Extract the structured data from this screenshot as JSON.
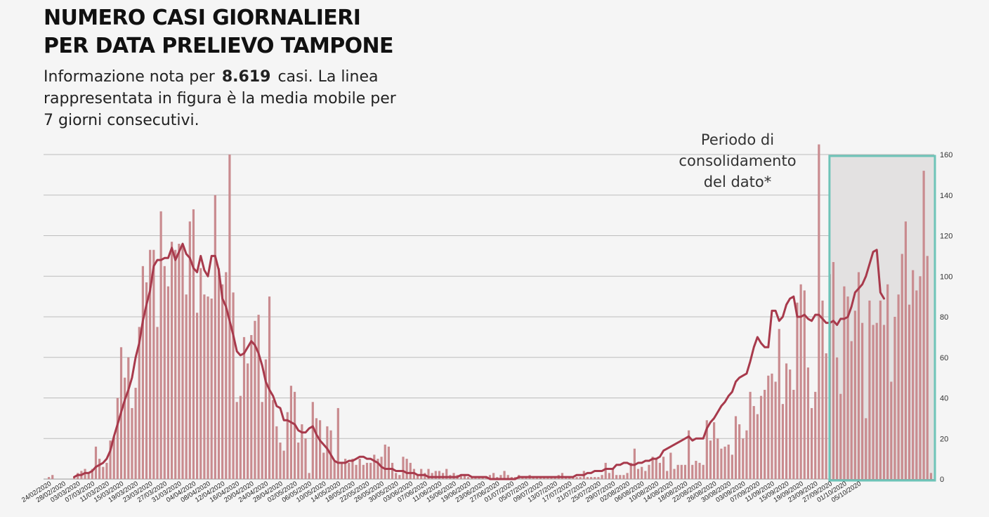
{
  "header": {
    "title_line1": "NUMERO CASI GIORNALIERI",
    "title_line2": "PER DATA PRELIEVO TAMPONE",
    "subtitle_pre": "Informazione nota per",
    "subtitle_count": "8.619",
    "subtitle_post": "casi. La linea rappresentata in figura è la media mobile per 7 giorni consecutivi."
  },
  "annotation": {
    "line1": "Periodo di",
    "line2": "consolidamento",
    "line3": "del dato*"
  },
  "colors": {
    "bar": "#c98b8f",
    "line": "#a83a4c",
    "box": "#6ec4b8",
    "grid": "#bdbdbd"
  },
  "chart_data": {
    "type": "bar",
    "title": "NUMERO CASI GIORNALIERI PER DATA PRELIEVO TAMPONE",
    "ylim": [
      0,
      160
    ],
    "yticks": [
      0,
      20,
      40,
      60,
      80,
      100,
      120,
      140,
      160
    ],
    "grid": true,
    "start_date": "24/02/2020",
    "end_date": "05/10/2020",
    "tick_labels": [
      "24/02/2020",
      "28/02/2020",
      "03/03/2020",
      "07/03/2020",
      "11/03/2020",
      "15/03/2020",
      "19/03/2020",
      "23/03/2020",
      "27/03/2020",
      "31/03/2020",
      "04/04/2020",
      "08/04/2020",
      "12/04/2020",
      "16/04/2020",
      "20/04/2020",
      "24/04/2020",
      "28/04/2020",
      "02/05/2020",
      "06/05/2020",
      "10/05/2020",
      "14/05/2020",
      "18/05/2020",
      "22/05/2020",
      "26/05/2020",
      "30/05/2020",
      "03/06/2020",
      "07/06/2020",
      "11/06/2020",
      "15/06/2020",
      "19/06/2020",
      "23/06/2020",
      "27/06/2020",
      "01/07/2020",
      "05/07/2020",
      "09/07/2020",
      "13/07/2020",
      "17/07/2020",
      "21/07/2020",
      "25/07/2020",
      "29/07/2020",
      "02/08/2020",
      "06/08/2020",
      "10/08/2020",
      "14/08/2020",
      "18/08/2020",
      "22/08/2020",
      "26/08/2020",
      "30/08/2020",
      "03/09/2020",
      "07/09/2020",
      "11/09/2020",
      "15/09/2020",
      "19/09/2020",
      "23/09/2020",
      "27/09/2020",
      "01/10/2020",
      "05/10/2020"
    ],
    "consolidation_period": [
      "28/09/2020",
      "05/10/2020"
    ],
    "series": [
      {
        "type": "bar",
        "values": [
          1,
          2,
          0,
          0,
          0,
          0,
          0,
          1,
          3,
          4,
          5,
          3,
          5,
          16,
          10,
          6,
          8,
          19,
          21,
          40,
          65,
          50,
          60,
          35,
          45,
          75,
          105,
          97,
          113,
          113,
          75,
          132,
          105,
          95,
          117,
          113,
          116,
          115,
          91,
          127,
          133,
          82,
          104,
          91,
          90,
          89,
          140,
          104,
          96,
          102,
          160,
          92,
          38,
          41,
          70,
          57,
          71,
          78,
          81,
          38,
          59,
          90,
          39,
          26,
          18,
          14,
          33,
          46,
          43,
          18,
          27,
          20,
          3,
          38,
          30,
          29,
          13,
          26,
          24,
          9,
          35,
          8,
          10,
          8,
          10,
          7,
          10,
          7,
          8,
          8,
          12,
          10,
          11,
          17,
          16,
          8,
          3,
          2,
          11,
          10,
          8,
          5,
          2,
          5,
          3,
          5,
          3,
          4,
          4,
          3,
          5,
          2,
          3,
          2,
          2,
          2,
          1,
          1,
          1,
          1,
          1,
          1,
          2,
          3,
          1,
          2,
          4,
          2,
          1,
          1,
          2,
          1,
          1,
          2,
          1,
          1,
          1,
          1,
          1,
          1,
          1,
          2,
          3,
          1,
          1,
          1,
          1,
          1,
          4,
          1,
          1,
          1,
          1,
          2,
          8,
          3,
          5,
          2,
          2,
          2,
          3,
          8,
          15,
          5,
          6,
          4,
          7,
          11,
          10,
          8,
          11,
          4,
          13,
          5,
          7,
          7,
          7,
          24,
          7,
          9,
          8,
          7,
          29,
          19,
          28,
          20,
          15,
          16,
          17,
          12,
          31,
          27,
          20,
          24,
          43,
          36,
          32,
          41,
          44,
          51,
          52,
          48,
          74,
          37,
          57,
          54,
          44,
          87,
          96,
          93,
          55,
          35,
          43,
          165,
          88,
          62,
          101,
          107,
          60,
          42,
          95,
          90,
          68,
          83,
          102,
          77,
          30,
          88,
          76,
          77,
          88,
          76,
          96,
          48,
          80,
          91,
          111,
          127,
          86,
          103,
          93,
          100,
          152,
          110,
          3
        ],
        "description_units": "cases per day"
      },
      {
        "type": "line",
        "values": [
          null,
          null,
          null,
          null,
          null,
          null,
          null,
          1,
          2,
          2,
          3,
          3,
          4,
          6,
          7,
          8,
          10,
          14,
          21,
          27,
          33,
          39,
          44,
          50,
          60,
          67,
          78,
          86,
          93,
          105,
          108,
          108,
          109,
          109,
          114,
          108,
          112,
          116,
          111,
          109,
          104,
          102,
          110,
          103,
          100,
          110,
          110,
          103,
          89,
          85,
          78,
          71,
          63,
          61,
          62,
          65,
          68,
          66,
          62,
          56,
          48,
          44,
          41,
          36,
          35,
          29,
          29,
          28,
          27,
          24,
          23,
          23,
          25,
          26,
          22,
          19,
          17,
          15,
          12,
          9,
          8,
          8,
          8,
          9,
          9,
          10,
          11,
          11,
          10,
          10,
          9,
          8,
          6,
          5,
          5,
          5,
          4,
          4,
          4,
          3,
          3,
          3,
          2,
          2,
          2,
          1,
          1,
          1,
          1,
          1,
          1,
          1,
          1,
          1,
          2,
          2,
          2,
          1,
          1,
          1,
          1,
          1,
          0,
          0,
          0,
          0,
          0,
          0,
          0,
          0,
          1,
          1,
          1,
          1,
          1,
          1,
          1,
          1,
          1,
          1,
          1,
          1,
          1,
          1,
          1,
          1,
          2,
          2,
          2,
          3,
          3,
          4,
          4,
          4,
          5,
          5,
          5,
          7,
          7,
          8,
          8,
          7,
          7,
          8,
          8,
          9,
          9,
          10,
          10,
          11,
          14,
          15,
          16,
          17,
          18,
          19,
          20,
          21,
          19,
          20,
          20,
          20,
          25,
          28,
          30,
          33,
          36,
          38,
          41,
          43,
          48,
          50,
          51,
          52,
          58,
          65,
          70,
          67,
          65,
          65,
          83,
          83,
          78,
          80,
          86,
          89,
          90,
          80,
          80,
          81,
          79,
          78,
          81,
          81,
          79,
          77,
          77,
          78,
          76,
          79,
          79,
          80,
          85,
          92,
          94,
          96,
          100,
          106,
          112,
          113,
          92,
          89
        ],
        "description_units": "7-day moving average"
      }
    ]
  }
}
